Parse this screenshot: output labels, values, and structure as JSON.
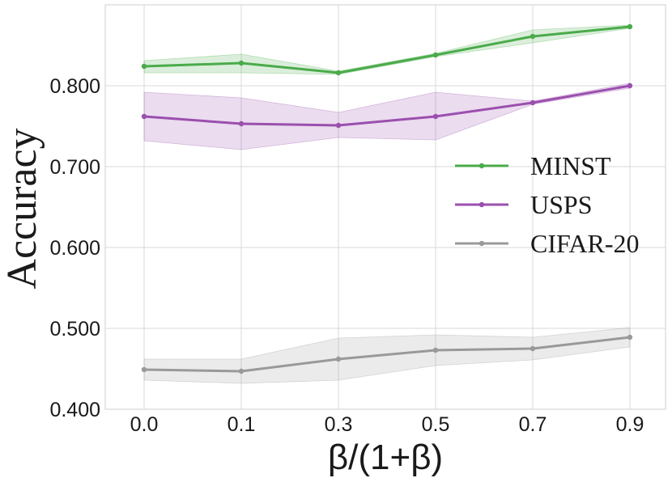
{
  "chart_data": {
    "type": "line",
    "title": "",
    "xlabel": "β/(1+β)",
    "ylabel": "Accuracy",
    "x": [
      0.0,
      0.1,
      0.3,
      0.5,
      0.7,
      0.9
    ],
    "x_tick_labels": [
      "0.0",
      "0.1",
      "0.3",
      "0.5",
      "0.7",
      "0.9"
    ],
    "y_ticks": [
      0.4,
      0.5,
      0.6,
      0.7,
      0.8
    ],
    "y_tick_labels": [
      "0.400",
      "0.500",
      "0.600",
      "0.700",
      "0.800"
    ],
    "ylim": [
      0.4,
      0.9
    ],
    "grid": true,
    "legend_position": "center-right",
    "series": [
      {
        "name": "MINST",
        "color": "#4aab4a",
        "values": [
          0.824,
          0.828,
          0.816,
          0.838,
          0.861,
          0.873
        ],
        "lower": [
          0.816,
          0.816,
          0.814,
          0.836,
          0.853,
          0.871
        ],
        "upper": [
          0.831,
          0.839,
          0.818,
          0.84,
          0.869,
          0.875
        ]
      },
      {
        "name": "USPS",
        "color": "#9b4fae",
        "values": [
          0.762,
          0.753,
          0.751,
          0.762,
          0.779,
          0.8
        ],
        "lower": [
          0.732,
          0.721,
          0.736,
          0.733,
          0.777,
          0.797
        ],
        "upper": [
          0.792,
          0.785,
          0.767,
          0.792,
          0.781,
          0.803
        ]
      },
      {
        "name": "CIFAR-20",
        "color": "#999999",
        "values": [
          0.449,
          0.447,
          0.462,
          0.473,
          0.475,
          0.489
        ],
        "lower": [
          0.436,
          0.432,
          0.436,
          0.454,
          0.461,
          0.477
        ],
        "upper": [
          0.462,
          0.462,
          0.488,
          0.492,
          0.489,
          0.501
        ]
      }
    ]
  }
}
